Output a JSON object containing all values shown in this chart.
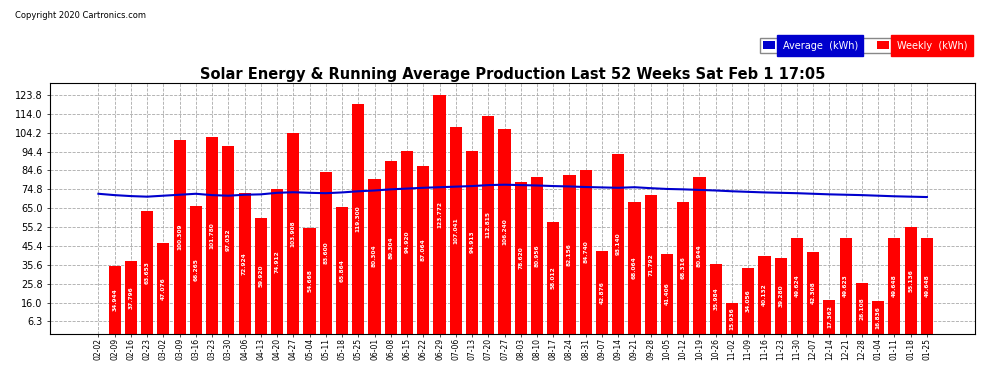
{
  "title": "Solar Energy & Running Average Production Last 52 Weeks Sat Feb 1 17:05",
  "copyright": "Copyright 2020 Cartronics.com",
  "legend_avg": "Average  (kWh)",
  "legend_weekly": "Weekly  (kWh)",
  "bar_color": "#ff0000",
  "avg_line_color": "#0000cd",
  "background_color": "#ffffff",
  "plot_bg_color": "#ffffff",
  "yticks": [
    6.3,
    16.0,
    25.8,
    35.6,
    45.4,
    55.2,
    65.0,
    74.8,
    84.6,
    94.4,
    104.2,
    114.0,
    123.8
  ],
  "categories": [
    "02-02",
    "02-09",
    "02-16",
    "02-23",
    "03-02",
    "03-09",
    "03-16",
    "03-23",
    "03-30",
    "04-06",
    "04-13",
    "04-20",
    "04-27",
    "05-04",
    "05-11",
    "05-18",
    "05-25",
    "06-01",
    "06-08",
    "06-15",
    "06-22",
    "06-29",
    "07-06",
    "07-13",
    "07-20",
    "07-27",
    "08-03",
    "08-10",
    "08-17",
    "08-24",
    "08-31",
    "09-07",
    "09-14",
    "09-21",
    "09-28",
    "10-05",
    "10-12",
    "10-19",
    "10-26",
    "11-02",
    "11-09",
    "11-16",
    "11-23",
    "11-30",
    "12-07",
    "12-14",
    "12-21",
    "12-28",
    "01-04",
    "01-11",
    "01-18",
    "01-25"
  ],
  "weekly_values": [
    0.0,
    34.944,
    37.796,
    63.653,
    47.076,
    100.309,
    66.265,
    101.78,
    97.032,
    72.924,
    59.92,
    74.912,
    103.908,
    54.668,
    83.6,
    65.864,
    119.3,
    80.304,
    89.304,
    94.92,
    87.064,
    123.772,
    107.041,
    94.913,
    112.815,
    106.24,
    78.62,
    80.956,
    58.012,
    82.156,
    84.74,
    42.876,
    93.14,
    68.064,
    71.792,
    41.406,
    68.316,
    80.944,
    35.984,
    15.936,
    34.056,
    40.132,
    39.28,
    49.624,
    42.308,
    17.362,
    49.623,
    26.108,
    16.836,
    49.648,
    55.136,
    49.648
  ],
  "avg_values": [
    72.5,
    71.8,
    71.3,
    71.0,
    71.5,
    72.0,
    72.5,
    71.8,
    71.5,
    72.0,
    72.2,
    73.0,
    73.3,
    73.0,
    72.8,
    73.2,
    73.8,
    74.2,
    74.8,
    75.2,
    75.6,
    75.9,
    76.2,
    76.5,
    77.0,
    77.2,
    77.0,
    76.8,
    76.5,
    76.3,
    76.0,
    75.8,
    75.6,
    75.9,
    75.4,
    75.0,
    74.8,
    74.5,
    74.2,
    73.8,
    73.5,
    73.2,
    73.0,
    72.8,
    72.5,
    72.2,
    72.0,
    71.8,
    71.5,
    71.2,
    71.0,
    70.8
  ],
  "ylim_min": 0,
  "ylim_max": 130,
  "grid_color": "#aaaaaa",
  "bar_width": 0.75
}
